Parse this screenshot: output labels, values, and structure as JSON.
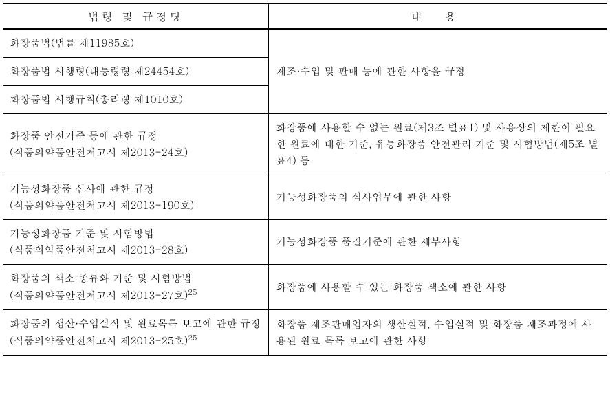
{
  "headers": {
    "left": "법령 및 규정명",
    "right": "내 용"
  },
  "rows": {
    "r1": {
      "left": "화장품법(법률 제11985호)"
    },
    "r2": {
      "left": "화장품법 시행령(대통령령 제24454호)"
    },
    "r3": {
      "left": "화장품법 시행규칙(총리령 제1010호)"
    },
    "r1to3_right": "제조·수입 및 판매 등에 관한 사항을 규정",
    "r4": {
      "left": "화장품 안전기준 등에 관한 규정\n(식품의약품안전처고시 제2013-24호)",
      "right": "화장품에 사용할 수 없는 원료(제3조 별표1) 및 사용상의 제한이 필요한 원료에 대한 기준, 유통화장품 안전관리 기준 및 시험방법(제5조 별표4) 등"
    },
    "r5": {
      "left": "기능성화장품 심사에 관한 규정\n(식품의약품안전처고시 제2013-190호)",
      "right": "기능성화장품의 심사업무에 관한 사항"
    },
    "r6": {
      "left": "기능성화장품 기준 및 시험방법\n(식품의약품안전처고시 제2013-28호)",
      "right": "기능성화장품 품질기준에 관한 세부사항"
    },
    "r7": {
      "left_part1": "화장품의 색소 종류와 기준 및 시험방법\n(식품의약품안전처고시 제2013-27호)",
      "left_sup": "25",
      "right": "화장품에 사용할 수 있는 화장품 색소에 관한 사항"
    },
    "r8": {
      "left_part1": "화장품의 생산·수입실적 및 원료목록 보고에 관한 규정(식품의약품안전처고시 제2013-25호)",
      "left_sup": "25",
      "right": "화장품 제조판매업자의 생산실적, 수입실적 및 화장품 제조과정에 사용된 원료 목록 보고에 관한 사항"
    }
  },
  "styling": {
    "border_color": "#000000",
    "background_color": "#ffffff",
    "text_color": "#000000",
    "header_border_top_width": 2,
    "header_border_bottom_width": 2,
    "row_border_width": 1,
    "last_row_border_width": 2,
    "font_size_body": 15,
    "font_size_header": 16,
    "line_height": 1.6,
    "col_left_width_pct": 44,
    "col_right_width_pct": 56
  }
}
